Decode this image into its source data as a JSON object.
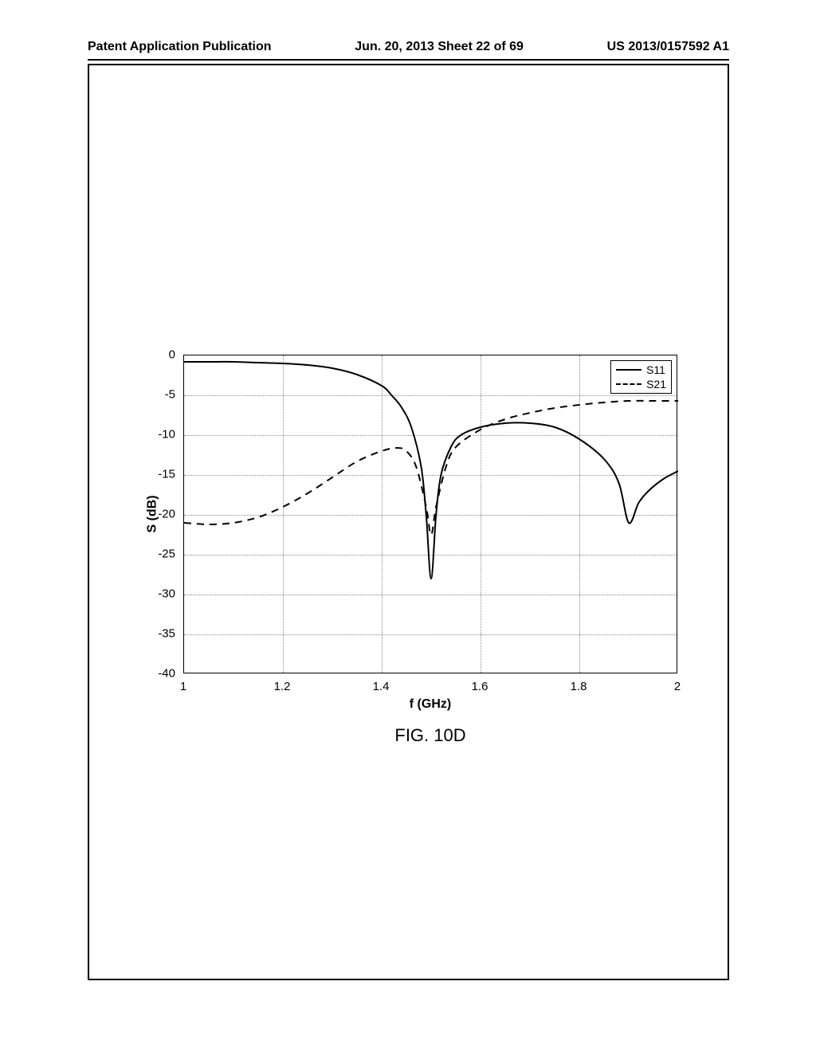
{
  "header": {
    "left": "Patent Application Publication",
    "center": "Jun. 20, 2013  Sheet 22 of 69",
    "right": "US 2013/0157592 A1"
  },
  "chart": {
    "type": "line",
    "xlabel": "f (GHz)",
    "ylabel": "S (dB)",
    "xlim": [
      1.0,
      2.0
    ],
    "ylim": [
      -40,
      0
    ],
    "xtick_step": 0.2,
    "ytick_step": 5,
    "xticks": [
      "1",
      "1.2",
      "1.4",
      "1.6",
      "1.8",
      "2"
    ],
    "yticks": [
      "0",
      "-5",
      "-10",
      "-15",
      "-20",
      "-25",
      "-30",
      "-35",
      "-40"
    ],
    "background_color": "#ffffff",
    "grid_color": "#888888",
    "grid_style": "dotted",
    "axis_color": "#000000",
    "line_width": 2,
    "series": [
      {
        "name": "S11",
        "style": "solid",
        "color": "#000000",
        "points": [
          [
            1.0,
            -0.8
          ],
          [
            1.05,
            -0.8
          ],
          [
            1.1,
            -0.8
          ],
          [
            1.15,
            -0.9
          ],
          [
            1.2,
            -1.0
          ],
          [
            1.25,
            -1.2
          ],
          [
            1.3,
            -1.6
          ],
          [
            1.35,
            -2.4
          ],
          [
            1.4,
            -3.8
          ],
          [
            1.42,
            -5.0
          ],
          [
            1.44,
            -6.5
          ],
          [
            1.46,
            -9.0
          ],
          [
            1.48,
            -14.0
          ],
          [
            1.49,
            -20.0
          ],
          [
            1.5,
            -28.0
          ],
          [
            1.51,
            -20.0
          ],
          [
            1.52,
            -15.0
          ],
          [
            1.54,
            -11.5
          ],
          [
            1.56,
            -10.0
          ],
          [
            1.6,
            -9.0
          ],
          [
            1.65,
            -8.5
          ],
          [
            1.7,
            -8.5
          ],
          [
            1.75,
            -9.0
          ],
          [
            1.8,
            -10.5
          ],
          [
            1.85,
            -13.0
          ],
          [
            1.88,
            -16.0
          ],
          [
            1.9,
            -21.0
          ],
          [
            1.92,
            -18.5
          ],
          [
            1.94,
            -17.0
          ],
          [
            1.97,
            -15.5
          ],
          [
            2.0,
            -14.5
          ]
        ]
      },
      {
        "name": "S21",
        "style": "dashed",
        "color": "#000000",
        "points": [
          [
            1.0,
            -21.0
          ],
          [
            1.05,
            -21.2
          ],
          [
            1.1,
            -21.0
          ],
          [
            1.15,
            -20.3
          ],
          [
            1.2,
            -19.0
          ],
          [
            1.25,
            -17.3
          ],
          [
            1.3,
            -15.3
          ],
          [
            1.35,
            -13.3
          ],
          [
            1.4,
            -12.0
          ],
          [
            1.43,
            -11.6
          ],
          [
            1.45,
            -12.0
          ],
          [
            1.47,
            -14.0
          ],
          [
            1.49,
            -19.0
          ],
          [
            1.5,
            -22.5
          ],
          [
            1.51,
            -19.0
          ],
          [
            1.53,
            -14.0
          ],
          [
            1.55,
            -11.5
          ],
          [
            1.6,
            -9.3
          ],
          [
            1.65,
            -8.0
          ],
          [
            1.7,
            -7.2
          ],
          [
            1.75,
            -6.6
          ],
          [
            1.8,
            -6.2
          ],
          [
            1.85,
            -5.9
          ],
          [
            1.9,
            -5.7
          ],
          [
            1.95,
            -5.7
          ],
          [
            2.0,
            -5.7
          ]
        ]
      }
    ],
    "legend": {
      "position": "top-right",
      "items": [
        {
          "label": "S11",
          "style": "solid"
        },
        {
          "label": "S21",
          "style": "dashed"
        }
      ]
    }
  },
  "figure_caption": "FIG. 10D"
}
